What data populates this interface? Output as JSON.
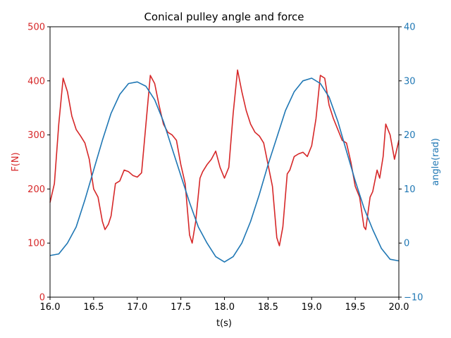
{
  "chart_data": {
    "type": "line",
    "title": "Conical pulley angle and force",
    "xlabel": "t(s)",
    "ylabel_left": "F(N)",
    "ylabel_right": "angle(rad)",
    "xlim": [
      16.0,
      20.0
    ],
    "ylim_left": [
      0,
      500
    ],
    "ylim_right": [
      -10,
      40
    ],
    "grid": false,
    "x_ticks": [
      "16.0",
      "16.5",
      "17.0",
      "17.5",
      "18.0",
      "18.5",
      "19.0",
      "19.5",
      "20.0"
    ],
    "y_ticks_left": [
      "0",
      "100",
      "200",
      "300",
      "400",
      "500"
    ],
    "y_ticks_right": [
      "−10",
      "0",
      "10",
      "20",
      "30",
      "40"
    ],
    "colors": {
      "force": "#d62728",
      "angle": "#1f77b4",
      "axes": "#000000"
    },
    "series": [
      {
        "axis": "left",
        "x": [
          16.0,
          16.05,
          16.1,
          16.15,
          16.2,
          16.25,
          16.3,
          16.35,
          16.4,
          16.45,
          16.5,
          16.55,
          16.6,
          16.63,
          16.67,
          16.7,
          16.75,
          16.8,
          16.85,
          16.9,
          16.95,
          17.0,
          17.05,
          17.1,
          17.15,
          17.2,
          17.25,
          17.3,
          17.35,
          17.4,
          17.45,
          17.5,
          17.55,
          17.6,
          17.63,
          17.67,
          17.72,
          17.75,
          17.8,
          17.85,
          17.9,
          17.95,
          18.0,
          18.05,
          18.1,
          18.15,
          18.2,
          18.25,
          18.3,
          18.35,
          18.4,
          18.45,
          18.5,
          18.55,
          18.6,
          18.63,
          18.67,
          18.72,
          18.75,
          18.8,
          18.85,
          18.9,
          18.95,
          19.0,
          19.05,
          19.1,
          19.15,
          19.2,
          19.25,
          19.3,
          19.35,
          19.4,
          19.45,
          19.5,
          19.55,
          19.6,
          19.62,
          19.67,
          19.7,
          19.75,
          19.78,
          19.82,
          19.85,
          19.9,
          19.95,
          20.0
        ],
        "y": [
          175,
          210,
          320,
          405,
          380,
          335,
          310,
          298,
          285,
          255,
          200,
          185,
          140,
          125,
          135,
          150,
          210,
          215,
          235,
          232,
          225,
          222,
          230,
          320,
          410,
          395,
          355,
          320,
          305,
          300,
          290,
          245,
          210,
          115,
          100,
          140,
          220,
          232,
          245,
          255,
          270,
          240,
          220,
          240,
          340,
          420,
          380,
          345,
          320,
          305,
          298,
          285,
          245,
          205,
          110,
          95,
          130,
          228,
          235,
          260,
          265,
          268,
          260,
          280,
          330,
          410,
          405,
          355,
          330,
          310,
          290,
          285,
          250,
          205,
          185,
          130,
          125,
          185,
          195,
          235,
          220,
          260,
          320,
          300,
          255,
          290
        ]
      },
      {
        "axis": "right",
        "x": [
          16.0,
          16.1,
          16.2,
          16.3,
          16.4,
          16.5,
          16.6,
          16.7,
          16.8,
          16.9,
          17.0,
          17.1,
          17.2,
          17.3,
          17.4,
          17.5,
          17.6,
          17.7,
          17.8,
          17.9,
          18.0,
          18.1,
          18.2,
          18.3,
          18.4,
          18.5,
          18.6,
          18.7,
          18.8,
          18.9,
          19.0,
          19.1,
          19.2,
          19.3,
          19.4,
          19.5,
          19.6,
          19.7,
          19.8,
          19.9,
          20.0
        ],
        "y": [
          -2.3,
          -2.0,
          0.0,
          3.0,
          8.0,
          13.5,
          19.0,
          24.0,
          27.5,
          29.5,
          29.8,
          29.0,
          26.5,
          22.5,
          17.5,
          12.5,
          7.5,
          3.0,
          0.0,
          -2.5,
          -3.5,
          -2.5,
          0.0,
          4.0,
          9.0,
          14.5,
          19.5,
          24.5,
          28.0,
          30.0,
          30.5,
          29.5,
          27.0,
          22.5,
          17.0,
          11.5,
          6.5,
          2.5,
          -1.0,
          -3.0,
          -3.3
        ]
      }
    ]
  }
}
